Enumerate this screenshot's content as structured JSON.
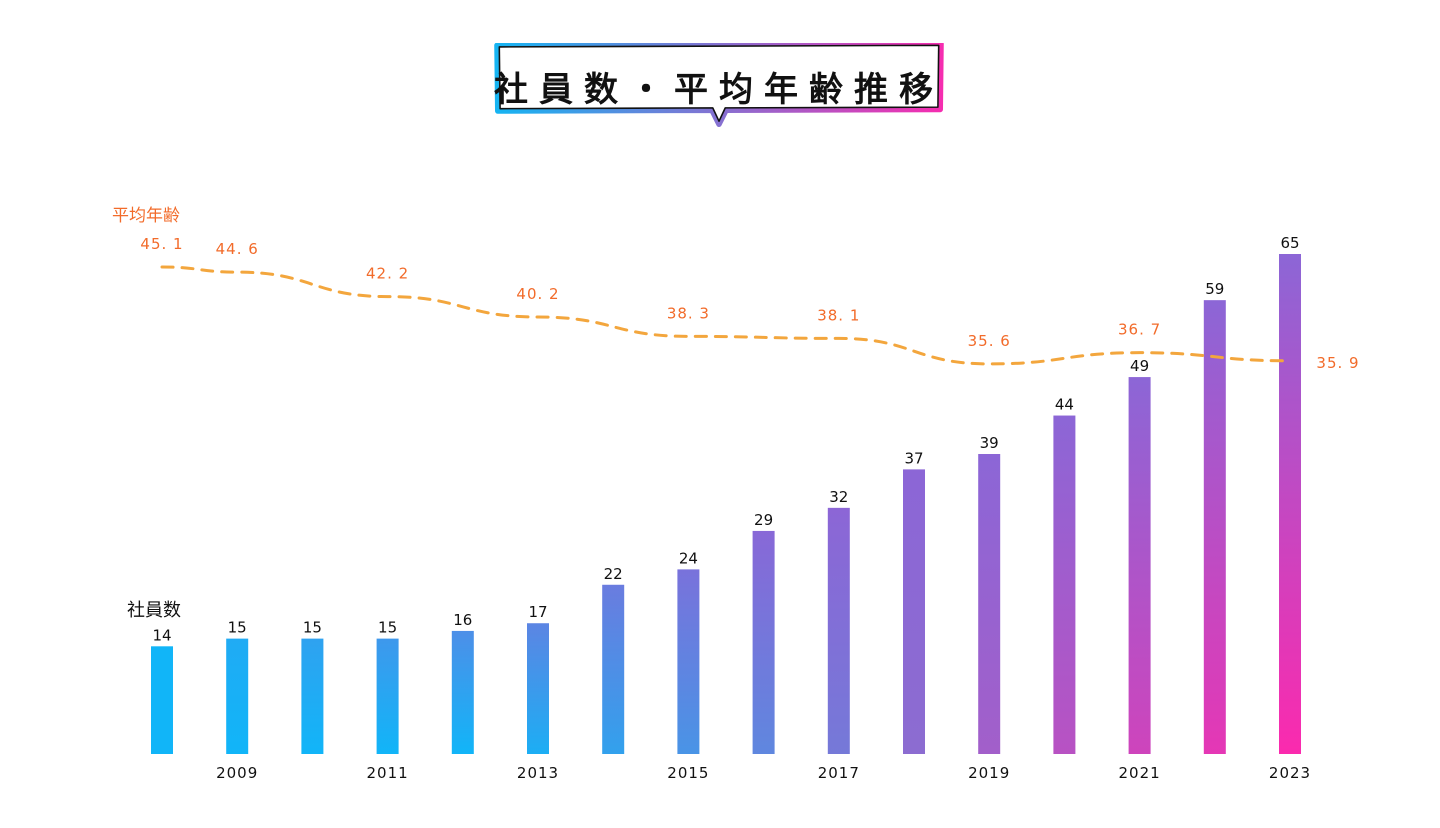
{
  "title": "社員数・平均年齢推移",
  "colors": {
    "bar_top_start": "#11b5f8",
    "bar_mid": "#8c66d6",
    "bar_end": "#fb2aae",
    "line": "#f3a63d",
    "age_text": "#f26b2a",
    "title_border_left": "#16b4f2",
    "title_border_right": "#f52db0"
  },
  "chart_data": {
    "type": "bar+line",
    "categories": [
      "2008",
      "2009",
      "2010",
      "2011",
      "2012",
      "2013",
      "2014",
      "2015",
      "2016",
      "2017",
      "2018",
      "2019",
      "2020",
      "2021",
      "2022",
      "2023"
    ],
    "tick_labels": [
      "",
      "2009",
      "",
      "2011",
      "",
      "2013",
      "",
      "2015",
      "",
      "2017",
      "",
      "2019",
      "",
      "2021",
      "",
      "2023"
    ],
    "series": [
      {
        "name": "社員数",
        "type": "bar",
        "values": [
          14,
          15,
          15,
          15,
          16,
          17,
          22,
          24,
          29,
          32,
          37,
          39,
          44,
          49,
          59,
          65
        ]
      },
      {
        "name": "平均年齢",
        "type": "line",
        "points": [
          {
            "x": "2008",
            "y": 45.1
          },
          {
            "x": "2009",
            "y": 44.6
          },
          {
            "x": "2011",
            "y": 42.2
          },
          {
            "x": "2013",
            "y": 40.2
          },
          {
            "x": "2015",
            "y": 38.3
          },
          {
            "x": "2017",
            "y": 38.1
          },
          {
            "x": "2019",
            "y": 35.6
          },
          {
            "x": "2021",
            "y": 36.7
          },
          {
            "x": "2023",
            "y": 35.9
          }
        ]
      }
    ]
  }
}
